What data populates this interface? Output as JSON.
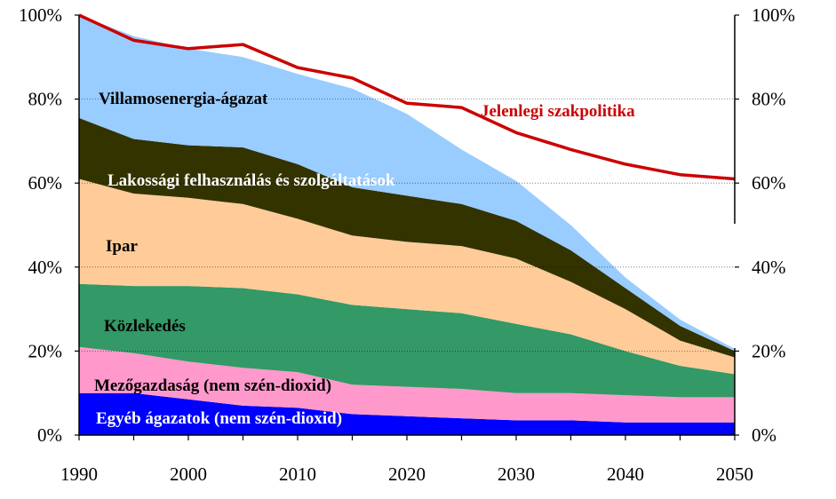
{
  "chart_data": {
    "type": "area",
    "stacked": true,
    "x": [
      1990,
      1995,
      2000,
      2005,
      2010,
      2015,
      2020,
      2025,
      2030,
      2035,
      2040,
      2045,
      2050
    ],
    "xticks": [
      "1990",
      "2000",
      "2010",
      "2020",
      "2030",
      "2040",
      "2050"
    ],
    "yticks_left": [
      "0%",
      "20%",
      "40%",
      "60%",
      "80%",
      "100%"
    ],
    "yticks_right": [
      "0%",
      "20%",
      "40%",
      "60%",
      "80%",
      "100%"
    ],
    "ylim": [
      0,
      100
    ],
    "grid": "horizontal dotted",
    "series": [
      {
        "name": "Egyéb ágazatok (nem szén-dioxid)",
        "color": "#0000ff",
        "values": [
          10,
          10,
          8.5,
          7,
          6.5,
          5,
          4.5,
          4,
          3.5,
          3.5,
          3,
          3,
          3
        ]
      },
      {
        "name": "Mezőgazdaság (nem szén-dioxid)",
        "color": "#ff99cc",
        "values": [
          11,
          9.5,
          9,
          9,
          8.5,
          7,
          7,
          7,
          6.5,
          6.5,
          6.5,
          6,
          6
        ]
      },
      {
        "name": "Közlekedés",
        "color": "#339966",
        "values": [
          15,
          16,
          18,
          19,
          18.5,
          19,
          18.5,
          18,
          16.5,
          14,
          10.5,
          7.5,
          5.5
        ]
      },
      {
        "name": "Ipar",
        "color": "#ffcc99",
        "values": [
          25,
          22,
          21,
          20,
          18,
          16.5,
          16,
          16,
          15.5,
          12.5,
          10,
          6,
          4
        ]
      },
      {
        "name": "Lakossági felhasználás és szolgáltatások",
        "color": "#333300",
        "values": [
          14.5,
          13,
          12.5,
          13.5,
          13,
          11.5,
          11,
          10,
          9,
          7.5,
          5,
          3.5,
          1.5
        ]
      },
      {
        "name": "Villamosenergia-ágazat",
        "color": "#99ccff",
        "values": [
          24.5,
          24.5,
          23,
          21.5,
          21.5,
          23.5,
          19.5,
          13,
          9.5,
          6,
          2.5,
          1.5,
          0.5
        ]
      }
    ],
    "line": {
      "name": "Jelenlegi szakpolitika",
      "color": "#cc0000",
      "values": [
        100,
        94,
        92,
        93,
        87.5,
        85,
        79,
        78,
        72,
        68,
        64.5,
        62,
        61
      ]
    },
    "labels": {
      "villamos": "Villamosenergia-ágazat",
      "lakossagi": "Lakossági felhasználás és szolgáltatások",
      "ipar": "Ipar",
      "kozlekedes": "Közlekedés",
      "mezogazdasag": "Mezőgazdaság (nem szén-dioxid)",
      "egyeb": "Egyéb ágazatok (nem szén-dioxid)",
      "jelenlegi": "Jelenlegi szakpolitika"
    },
    "colors": {
      "axis": "#000000",
      "grid": "#000000",
      "label_dark": "#000000",
      "label_light": "#ffffff",
      "label_red": "#cc0000"
    }
  }
}
